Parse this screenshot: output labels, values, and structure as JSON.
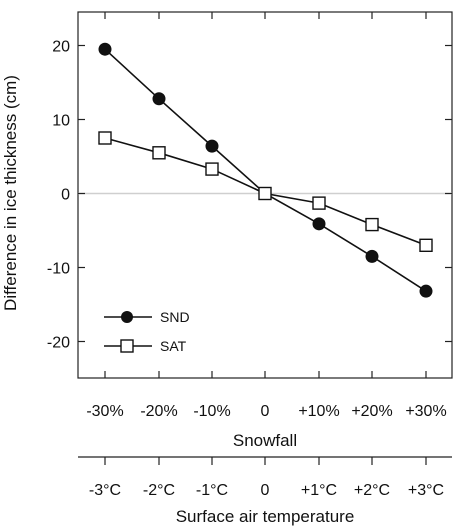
{
  "chart_data": {
    "type": "line",
    "ylabel": "Difference in ice thickness (cm)",
    "x_axes": [
      {
        "title": "Snowfall",
        "tick_labels": [
          "-30%",
          "-20%",
          "-10%",
          "0",
          "+10%",
          "+20%",
          "+30%"
        ]
      },
      {
        "title": "Surface air temperature",
        "tick_labels": [
          "-3°C",
          "-2°C",
          "-1°C",
          "0",
          "+1°C",
          "+2°C",
          "+3°C"
        ]
      }
    ],
    "ylim": [
      -25,
      25
    ],
    "yticks": [
      -20,
      -10,
      0,
      10,
      20
    ],
    "zero_line": true,
    "legend_position": "lower-left",
    "series": [
      {
        "name": "SND",
        "marker": "filled-circle",
        "color": "#111111",
        "values": [
          19.5,
          12.8,
          6.4,
          0,
          -4.1,
          -8.5,
          -13.2
        ]
      },
      {
        "name": "SAT",
        "marker": "open-square",
        "color": "#111111",
        "values": [
          7.5,
          5.5,
          3.3,
          0,
          -1.3,
          -4.2,
          -7.0
        ]
      }
    ]
  }
}
